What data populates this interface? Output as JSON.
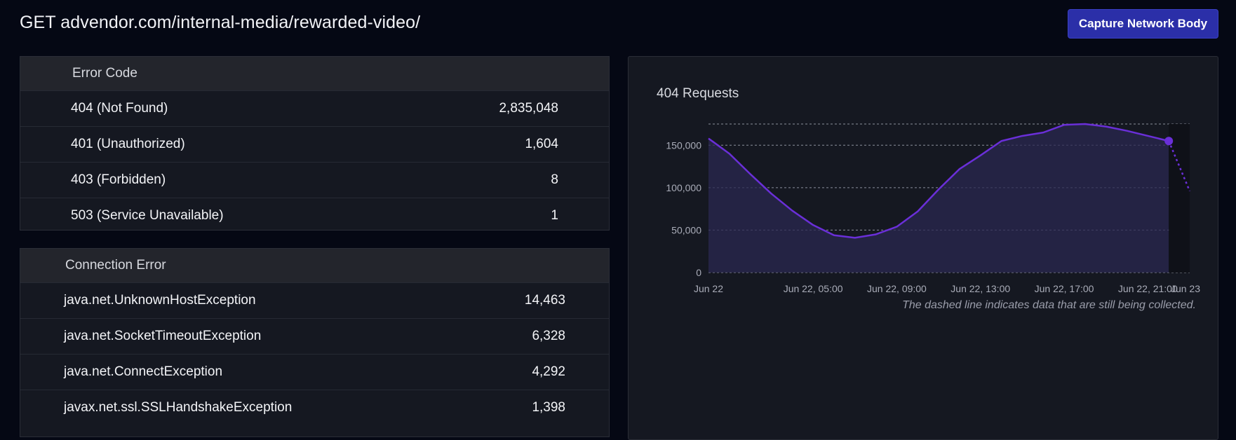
{
  "header": {
    "title": "GET advendor.com/internal-media/rewarded-video/",
    "capture_button": "Capture Network Body"
  },
  "error_code_table": {
    "header": "Error Code",
    "rows": [
      {
        "label": "404 (Not Found)",
        "value": "2,835,048"
      },
      {
        "label": "401 (Unauthorized)",
        "value": "1,604"
      },
      {
        "label": "403 (Forbidden)",
        "value": "8"
      },
      {
        "label": "503 (Service Unavailable)",
        "value": "1"
      }
    ]
  },
  "connection_error_table": {
    "header": "Connection Error",
    "rows": [
      {
        "label": "java.net.UnknownHostException",
        "value": "14,463"
      },
      {
        "label": "java.net.SocketTimeoutException",
        "value": "6,328"
      },
      {
        "label": "java.net.ConnectException",
        "value": "4,292"
      },
      {
        "label": "javax.net.ssl.SSLHandshakeException",
        "value": "1,398"
      }
    ]
  },
  "colors": {
    "accent": "#6a2fd8",
    "button": "#2b2fa8",
    "background": "#050814",
    "panel": "#151821"
  },
  "chart_data": {
    "type": "area",
    "title": "404 Requests",
    "note": "The dashed line indicates data that are still being collected.",
    "y_ticks": [
      0,
      50000,
      100000,
      150000
    ],
    "y_tick_labels": [
      "0",
      "50,000",
      "100,000",
      "150,000"
    ],
    "ylim": [
      0,
      175000
    ],
    "x_range_hours": [
      0,
      23
    ],
    "x_ticks": [
      {
        "hour": 0,
        "label": "Jun 22"
      },
      {
        "hour": 5,
        "label": "Jun 22, 05:00"
      },
      {
        "hour": 9,
        "label": "Jun 22, 09:00"
      },
      {
        "hour": 13,
        "label": "Jun 22, 13:00"
      },
      {
        "hour": 17,
        "label": "Jun 22, 17:00"
      },
      {
        "hour": 21,
        "label": "Jun 22, 21:00"
      },
      {
        "hour": 24,
        "label": "Jun 23"
      }
    ],
    "series": [
      {
        "name": "",
        "x": [
          0,
          1,
          2,
          3,
          4,
          5,
          6,
          7,
          8,
          9,
          10,
          11,
          12,
          13,
          14,
          15,
          16,
          17,
          18,
          19,
          20,
          21,
          22
        ],
        "values": [
          158000,
          140000,
          116000,
          93000,
          73000,
          56000,
          44000,
          41000,
          45000,
          54000,
          72000,
          98000,
          122000,
          138000,
          155000,
          161000,
          165000,
          174000,
          175000,
          172000,
          167000,
          161000,
          155000
        ]
      }
    ],
    "partial": {
      "x": [
        22,
        23
      ],
      "values": [
        155000,
        96000
      ]
    },
    "grid": true
  }
}
